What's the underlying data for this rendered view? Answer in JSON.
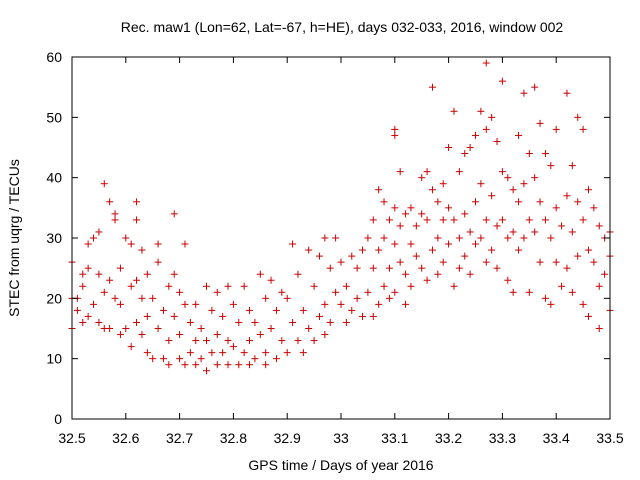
{
  "chart_data": {
    "type": "scatter",
    "title": "Rec. maw1 (Lon=62, Lat=-67, h=HE), days 032-033, 2016, window 002",
    "xlabel": "GPS time / Days of year 2016",
    "ylabel": "STEC from uqrg / TECUs",
    "xlim": [
      32.5,
      33.5
    ],
    "ylim": [
      0,
      60
    ],
    "xticks": [
      "32.5",
      "32.6",
      "32.7",
      "32.8",
      "32.9",
      "33",
      "33.1",
      "33.2",
      "33.3",
      "33.4",
      "33.5"
    ],
    "yticks": [
      "0",
      "10",
      "20",
      "30",
      "40",
      "50",
      "60"
    ],
    "grid": false,
    "marker": "plus",
    "color": "#cc0000",
    "series": [
      {
        "points": [
          [
            32.5,
            26
          ],
          [
            32.5,
            20
          ],
          [
            32.5,
            15
          ],
          [
            32.51,
            20
          ],
          [
            32.51,
            18
          ],
          [
            32.52,
            22
          ],
          [
            32.52,
            16
          ],
          [
            32.52,
            24
          ],
          [
            32.53,
            25
          ],
          [
            32.53,
            17
          ],
          [
            32.53,
            29
          ],
          [
            32.54,
            19
          ],
          [
            32.54,
            30
          ],
          [
            32.55,
            24
          ],
          [
            32.55,
            16
          ],
          [
            32.55,
            31
          ],
          [
            32.56,
            39
          ],
          [
            32.56,
            15
          ],
          [
            32.56,
            21
          ],
          [
            32.57,
            36
          ],
          [
            32.57,
            23
          ],
          [
            32.57,
            15
          ],
          [
            32.58,
            34
          ],
          [
            32.58,
            33
          ],
          [
            32.58,
            20
          ],
          [
            32.59,
            14
          ],
          [
            32.59,
            25
          ],
          [
            32.59,
            19
          ],
          [
            32.6,
            30
          ],
          [
            32.6,
            15
          ],
          [
            32.61,
            29
          ],
          [
            32.61,
            12
          ],
          [
            32.61,
            22
          ],
          [
            32.62,
            36
          ],
          [
            32.62,
            33
          ],
          [
            32.62,
            16
          ],
          [
            32.62,
            23
          ],
          [
            32.63,
            28
          ],
          [
            32.63,
            20
          ],
          [
            32.63,
            14
          ],
          [
            32.64,
            24
          ],
          [
            32.64,
            11
          ],
          [
            32.64,
            17
          ],
          [
            32.65,
            20
          ],
          [
            32.65,
            10
          ],
          [
            32.66,
            29
          ],
          [
            32.66,
            26
          ],
          [
            32.66,
            15
          ],
          [
            32.67,
            18
          ],
          [
            32.67,
            10
          ],
          [
            32.68,
            22
          ],
          [
            32.68,
            13
          ],
          [
            32.68,
            9
          ],
          [
            32.69,
            34
          ],
          [
            32.69,
            24
          ],
          [
            32.69,
            17
          ],
          [
            32.7,
            21
          ],
          [
            32.7,
            14
          ],
          [
            32.7,
            10
          ],
          [
            32.71,
            29
          ],
          [
            32.71,
            19
          ],
          [
            32.71,
            9
          ],
          [
            32.72,
            16
          ],
          [
            32.72,
            11
          ],
          [
            32.73,
            19
          ],
          [
            32.73,
            13
          ],
          [
            32.73,
            9
          ],
          [
            32.74,
            15
          ],
          [
            32.74,
            10
          ],
          [
            32.75,
            22
          ],
          [
            32.75,
            13
          ],
          [
            32.75,
            8
          ],
          [
            32.76,
            18
          ],
          [
            32.76,
            11
          ],
          [
            32.77,
            21
          ],
          [
            32.77,
            14
          ],
          [
            32.77,
            9
          ],
          [
            32.78,
            17
          ],
          [
            32.78,
            11
          ],
          [
            32.79,
            22
          ],
          [
            32.79,
            13
          ],
          [
            32.79,
            9
          ],
          [
            32.8,
            19
          ],
          [
            32.8,
            12
          ],
          [
            32.81,
            16
          ],
          [
            32.81,
            9
          ],
          [
            32.82,
            22
          ],
          [
            32.82,
            11
          ],
          [
            32.83,
            18
          ],
          [
            32.83,
            13
          ],
          [
            32.83,
            9
          ],
          [
            32.84,
            16
          ],
          [
            32.84,
            10
          ],
          [
            32.85,
            24
          ],
          [
            32.85,
            14
          ],
          [
            32.86,
            20
          ],
          [
            32.86,
            11
          ],
          [
            32.86,
            9
          ],
          [
            32.87,
            23
          ],
          [
            32.87,
            15
          ],
          [
            32.88,
            18
          ],
          [
            32.88,
            10
          ],
          [
            32.89,
            21
          ],
          [
            32.89,
            13
          ],
          [
            32.9,
            20
          ],
          [
            32.9,
            11
          ],
          [
            32.91,
            29
          ],
          [
            32.91,
            16
          ],
          [
            32.92,
            24
          ],
          [
            32.92,
            13
          ],
          [
            32.93,
            18
          ],
          [
            32.93,
            11
          ],
          [
            32.94,
            28
          ],
          [
            32.94,
            15
          ],
          [
            32.95,
            22
          ],
          [
            32.95,
            13
          ],
          [
            32.96,
            27
          ],
          [
            32.96,
            17
          ],
          [
            32.97,
            30
          ],
          [
            32.97,
            19
          ],
          [
            32.97,
            14
          ],
          [
            32.98,
            25
          ],
          [
            32.98,
            16
          ],
          [
            32.99,
            30
          ],
          [
            32.99,
            21
          ],
          [
            33.0,
            26
          ],
          [
            33.0,
            19
          ],
          [
            33.01,
            22
          ],
          [
            33.01,
            16
          ],
          [
            33.02,
            27
          ],
          [
            33.02,
            18
          ],
          [
            33.03,
            25
          ],
          [
            33.03,
            20
          ],
          [
            33.04,
            28
          ],
          [
            33.04,
            17
          ],
          [
            33.05,
            30
          ],
          [
            33.05,
            21
          ],
          [
            33.06,
            33
          ],
          [
            33.06,
            25
          ],
          [
            33.06,
            17
          ],
          [
            33.07,
            38
          ],
          [
            33.07,
            28
          ],
          [
            33.07,
            19
          ],
          [
            33.08,
            36
          ],
          [
            33.08,
            30
          ],
          [
            33.08,
            22
          ],
          [
            33.09,
            33
          ],
          [
            33.09,
            25
          ],
          [
            33.09,
            20
          ],
          [
            33.1,
            48
          ],
          [
            33.1,
            47
          ],
          [
            33.1,
            35
          ],
          [
            33.1,
            29
          ],
          [
            33.1,
            21
          ],
          [
            33.11,
            41
          ],
          [
            33.11,
            32
          ],
          [
            33.11,
            26
          ],
          [
            33.12,
            34
          ],
          [
            33.12,
            24
          ],
          [
            33.12,
            19
          ],
          [
            33.13,
            35
          ],
          [
            33.13,
            29
          ],
          [
            33.13,
            22
          ],
          [
            33.14,
            32
          ],
          [
            33.14,
            27
          ],
          [
            33.15,
            40
          ],
          [
            33.15,
            34
          ],
          [
            33.15,
            25
          ],
          [
            33.16,
            41
          ],
          [
            33.16,
            33
          ],
          [
            33.16,
            23
          ],
          [
            33.17,
            55
          ],
          [
            33.17,
            38
          ],
          [
            33.17,
            28
          ],
          [
            33.18,
            36
          ],
          [
            33.18,
            30
          ],
          [
            33.18,
            24
          ],
          [
            33.19,
            39
          ],
          [
            33.19,
            33
          ],
          [
            33.19,
            26
          ],
          [
            33.2,
            45
          ],
          [
            33.2,
            35
          ],
          [
            33.2,
            29
          ],
          [
            33.21,
            51
          ],
          [
            33.21,
            33
          ],
          [
            33.21,
            22
          ],
          [
            33.22,
            41
          ],
          [
            33.22,
            30
          ],
          [
            33.22,
            25
          ],
          [
            33.23,
            44
          ],
          [
            33.23,
            34
          ],
          [
            33.23,
            27
          ],
          [
            33.24,
            45
          ],
          [
            33.24,
            31
          ],
          [
            33.24,
            24
          ],
          [
            33.25,
            47
          ],
          [
            33.25,
            36
          ],
          [
            33.25,
            29
          ],
          [
            33.26,
            51
          ],
          [
            33.26,
            39
          ],
          [
            33.26,
            30
          ],
          [
            33.27,
            59
          ],
          [
            33.27,
            48
          ],
          [
            33.27,
            33
          ],
          [
            33.27,
            26
          ],
          [
            33.28,
            50
          ],
          [
            33.28,
            37
          ],
          [
            33.28,
            28
          ],
          [
            33.29,
            46
          ],
          [
            33.29,
            32
          ],
          [
            33.29,
            25
          ],
          [
            33.3,
            56
          ],
          [
            33.3,
            41
          ],
          [
            33.3,
            33
          ],
          [
            33.31,
            40
          ],
          [
            33.31,
            30
          ],
          [
            33.31,
            23
          ],
          [
            33.32,
            38
          ],
          [
            33.32,
            31
          ],
          [
            33.32,
            21
          ],
          [
            33.33,
            47
          ],
          [
            33.33,
            36
          ],
          [
            33.33,
            28
          ],
          [
            33.34,
            54
          ],
          [
            33.34,
            39
          ],
          [
            33.34,
            30
          ],
          [
            33.35,
            44
          ],
          [
            33.35,
            33
          ],
          [
            33.35,
            21
          ],
          [
            33.36,
            55
          ],
          [
            33.36,
            40
          ],
          [
            33.36,
            31
          ],
          [
            33.37,
            49
          ],
          [
            33.37,
            36
          ],
          [
            33.37,
            26
          ],
          [
            33.38,
            44
          ],
          [
            33.38,
            33
          ],
          [
            33.38,
            20
          ],
          [
            33.39,
            42
          ],
          [
            33.39,
            30
          ],
          [
            33.39,
            19
          ],
          [
            33.4,
            48
          ],
          [
            33.4,
            35
          ],
          [
            33.4,
            26
          ],
          [
            33.41,
            32
          ],
          [
            33.41,
            22
          ],
          [
            33.42,
            54
          ],
          [
            33.42,
            37
          ],
          [
            33.42,
            25
          ],
          [
            33.43,
            42
          ],
          [
            33.43,
            31
          ],
          [
            33.43,
            21
          ],
          [
            33.44,
            50
          ],
          [
            33.44,
            36
          ],
          [
            33.44,
            27
          ],
          [
            33.45,
            48
          ],
          [
            33.45,
            33
          ],
          [
            33.45,
            19
          ],
          [
            33.46,
            38
          ],
          [
            33.46,
            28
          ],
          [
            33.46,
            17
          ],
          [
            33.47,
            35
          ],
          [
            33.47,
            26
          ],
          [
            33.48,
            32
          ],
          [
            33.48,
            22
          ],
          [
            33.48,
            15
          ],
          [
            33.49,
            30
          ],
          [
            33.49,
            24
          ],
          [
            33.5,
            31
          ],
          [
            33.5,
            27
          ],
          [
            33.5,
            18
          ]
        ]
      }
    ]
  }
}
